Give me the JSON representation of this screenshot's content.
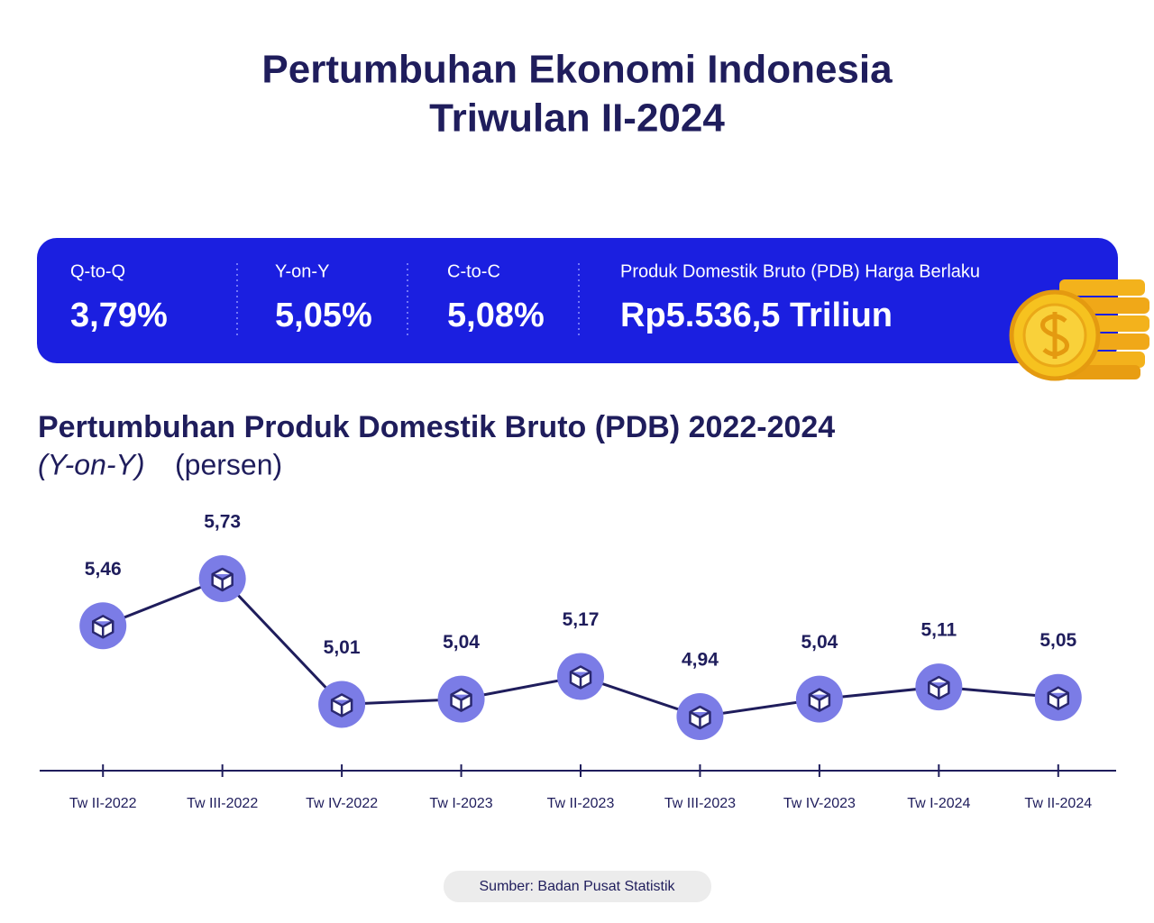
{
  "header": {
    "title_lines": [
      "Pertumbuhan Ekonomi Indonesia",
      "Triwulan II-2024"
    ]
  },
  "stats": [
    {
      "label": "Q-to-Q",
      "value": "3,79%"
    },
    {
      "label": "Y-on-Y",
      "value": "5,05%"
    },
    {
      "label": "C-to-C",
      "value": "5,08%"
    },
    {
      "label": "Produk Domestik Bruto (PDB) Harga Berlaku",
      "value": "Rp5.536,5 Triliun"
    }
  ],
  "chart_data": {
    "type": "line",
    "title": "Pertumbuhan Produk Domestik Bruto (PDB) 2022-2024",
    "subtitle": "(Y-on-Y)",
    "unit": "(persen)",
    "categories": [
      "Tw II-2022",
      "Tw III-2022",
      "Tw IV-2022",
      "Tw I-2023",
      "Tw II-2023",
      "Tw III-2023",
      "Tw IV-2023",
      "Tw I-2024",
      "Tw II-2024"
    ],
    "values": [
      5.46,
      5.73,
      5.01,
      5.04,
      5.17,
      4.94,
      5.04,
      5.11,
      5.05
    ],
    "value_labels": [
      "5,46",
      "5,73",
      "5,01",
      "5,04",
      "5,17",
      "4,94",
      "5,04",
      "5,11",
      "5,05"
    ],
    "color": "#1f1d5c",
    "marker_color": "#7b7ce6"
  },
  "source": "Sumber: Badan Pusat Statistik"
}
